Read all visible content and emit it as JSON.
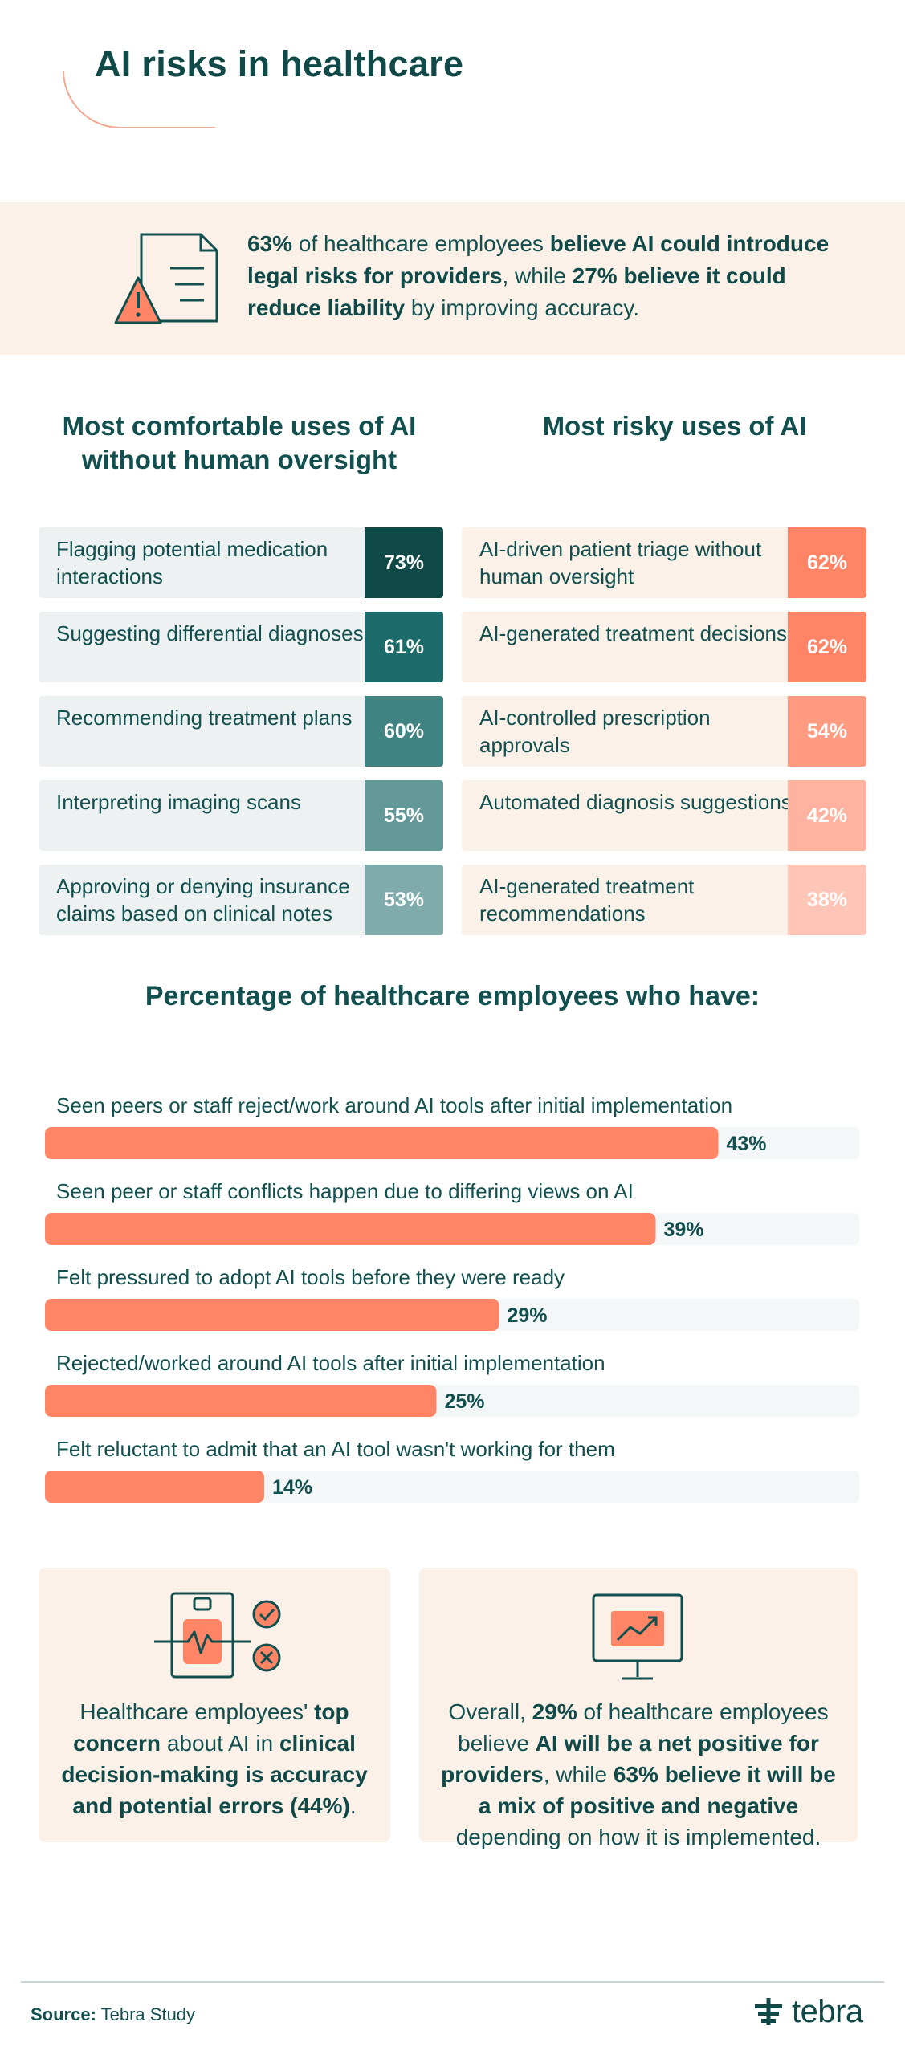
{
  "page": {
    "title": "AI risks in healthcare"
  },
  "banner": {
    "icon": "warning-document-icon",
    "parts": [
      {
        "text": "63%",
        "bold": true
      },
      {
        "text": " of healthcare employees ",
        "bold": false
      },
      {
        "text": "believe AI could introduce legal risks for providers",
        "bold": true
      },
      {
        "text": ", while ",
        "bold": false
      },
      {
        "text": "27% believe it could reduce liability",
        "bold": true
      },
      {
        "text": " by improving accuracy.",
        "bold": false
      }
    ]
  },
  "comfortable": {
    "heading": "Most comfortable uses of AI without human oversight",
    "items": [
      {
        "label": "Flagging potential medication interactions",
        "value": "73%",
        "color": "#0f4a49"
      },
      {
        "label": "Suggesting differential diagnoses",
        "value": "61%",
        "color": "#1c6b6b"
      },
      {
        "label": "Recommending treatment plans",
        "value": "60%",
        "color": "#3f8382"
      },
      {
        "label": "Interpreting imaging scans",
        "value": "55%",
        "color": "#629898"
      },
      {
        "label": "Approving or denying insurance claims based on clinical notes",
        "value": "53%",
        "color": "#80abab"
      }
    ]
  },
  "risky": {
    "heading": "Most risky uses of AI",
    "items": [
      {
        "label": "AI-driven patient triage without human oversight",
        "value": "62%",
        "color": "#ff8566"
      },
      {
        "label": "AI-generated treatment decisions",
        "value": "62%",
        "color": "#ff8566"
      },
      {
        "label": "AI-controlled prescription approvals",
        "value": "54%",
        "color": "#ff9b80"
      },
      {
        "label": "Automated diagnosis suggestions",
        "value": "42%",
        "color": "#ffb29f"
      },
      {
        "label": "AI-generated treatment recommendations",
        "value": "38%",
        "color": "#ffc5b6"
      }
    ]
  },
  "chart_data": {
    "type": "bar",
    "orientation": "horizontal",
    "title": "Percentage of healthcare employees who have:",
    "categories": [
      "Seen peers or staff reject/work around AI tools after initial implementation",
      "Seen peer or staff conflicts happen due to differing views on AI",
      "Felt pressured to adopt AI tools before they were ready",
      "Rejected/worked around AI tools after initial implementation",
      "Felt reluctant to admit that an AI tool wasn't working for them"
    ],
    "values": [
      43,
      39,
      29,
      25,
      14
    ],
    "value_labels": [
      "43%",
      "39%",
      "29%",
      "25%",
      "14%"
    ],
    "xlim": [
      0,
      52
    ],
    "bar_color": "#ff8566",
    "track_color": "#f3f7f7",
    "xlabel": "",
    "ylabel": ""
  },
  "cards": {
    "left": {
      "icon": "patient-check-icon",
      "parts": [
        {
          "text": "Healthcare employees' ",
          "bold": false
        },
        {
          "text": "top concern",
          "bold": true
        },
        {
          "text": " about AI in ",
          "bold": false
        },
        {
          "text": "clinical decision-making is accuracy and potential errors (44%)",
          "bold": true
        },
        {
          "text": ".",
          "bold": false
        }
      ]
    },
    "right": {
      "icon": "monitor-trend-icon",
      "parts": [
        {
          "text": "Overall, ",
          "bold": false
        },
        {
          "text": "29%",
          "bold": true
        },
        {
          "text": " of healthcare employees believe ",
          "bold": false
        },
        {
          "text": "AI will be a net positive for providers",
          "bold": true
        },
        {
          "text": ", while ",
          "bold": false
        },
        {
          "text": "63% believe it will be a mix of positive and negative",
          "bold": true
        },
        {
          "text": " depending on how it is implemented.",
          "bold": false
        }
      ]
    }
  },
  "footer": {
    "source_label": "Source:",
    "source_value": " Tebra Study",
    "brand": "tebra"
  },
  "colors": {
    "teal": "#0f4a49",
    "coral": "#ff8566",
    "cream": "#fbf1e8"
  }
}
